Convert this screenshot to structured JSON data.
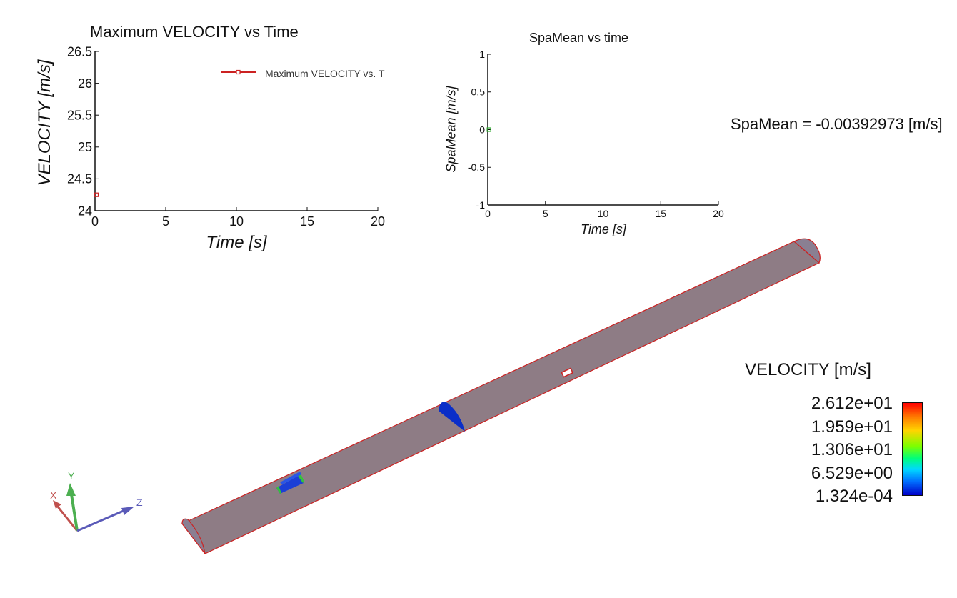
{
  "chart_data": [
    {
      "type": "scatter",
      "title": "Maximum VELOCITY vs Time",
      "xlabel": "Time [s]",
      "ylabel": "VELOCITY [m/s]",
      "xlim": [
        0,
        20
      ],
      "ylim": [
        24,
        26.5
      ],
      "xticks": [
        "0",
        "5",
        "10",
        "15",
        "20"
      ],
      "yticks": [
        "24",
        "24.5",
        "25",
        "25.5",
        "26",
        "26.5"
      ],
      "grid": false,
      "legend": "top-right",
      "series": [
        {
          "name": "Maximum VELOCITY vs. T",
          "color": "#cc2222",
          "x": [
            0.1
          ],
          "y": [
            24.25
          ]
        }
      ]
    },
    {
      "type": "scatter",
      "title": "SpaMean vs time",
      "xlabel": "Time [s]",
      "ylabel": "SpaMean [m/s]",
      "xlim": [
        0,
        20
      ],
      "ylim": [
        -1,
        1
      ],
      "xticks": [
        "0",
        "5",
        "10",
        "15",
        "20"
      ],
      "yticks": [
        "-1",
        "-0.5",
        "0",
        "0.5",
        "1"
      ],
      "grid": false,
      "series": [
        {
          "color": "#33aa33",
          "x": [
            0.1
          ],
          "y": [
            0
          ]
        }
      ]
    }
  ],
  "readout": {
    "text": "SpaMean = -0.00392973 [m/s]"
  },
  "legend_bar": {
    "title": "VELOCITY [m/s]",
    "labels": [
      "2.612e+01",
      "1.959e+01",
      "1.306e+01",
      "6.529e+00",
      "1.324e-04"
    ]
  },
  "axes_triad": {
    "x_label": "X",
    "y_label": "Y",
    "z_label": "Z",
    "x_color": "#c0504d",
    "y_color": "#4caf50",
    "z_color": "#5a5ab8"
  },
  "model_colors": {
    "pipe_fill": "#8e7c85",
    "edge": "#cc2222",
    "slice": "#0a2ec8"
  }
}
